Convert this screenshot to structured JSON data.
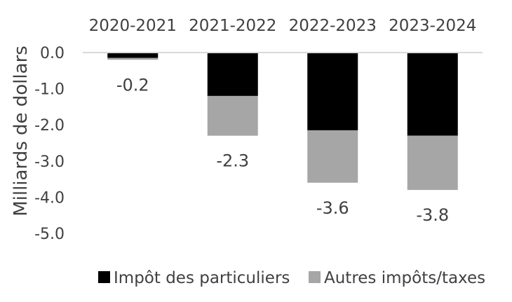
{
  "chart_data": {
    "type": "bar",
    "stacked": true,
    "categories_position": "top",
    "categories": [
      "2020-2021",
      "2021-2022",
      "2022-2023",
      "2023-2024"
    ],
    "series": [
      {
        "name": "Impôt des particuliers",
        "values": [
          -0.15,
          -1.2,
          -2.15,
          -2.3
        ],
        "color": "#000000"
      },
      {
        "name": "Autres impôts/taxes",
        "values": [
          -0.05,
          -1.1,
          -1.45,
          -1.5
        ],
        "color": "#a6a6a6"
      }
    ],
    "totals": [
      "-0.2",
      "-2.3",
      "-3.6",
      "-3.8"
    ],
    "ylabel": "Milliards de dollars",
    "ylim": [
      -5.0,
      0.0
    ],
    "yticks": [
      "0.0",
      "-1.0",
      "-2.0",
      "-3.0",
      "-4.0",
      "-5.0"
    ],
    "grid": false,
    "legend_position": "bottom",
    "zero_line_color": "#d9d9d9",
    "text_color": "#404040"
  }
}
